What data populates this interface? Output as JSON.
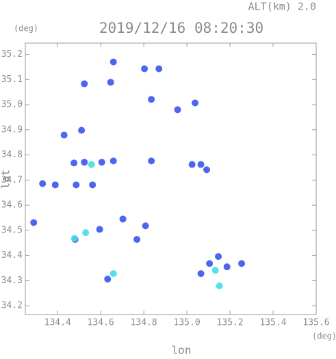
{
  "chart_data": {
    "type": "scatter",
    "title": "2019/12/16 08:20:30",
    "altitude_label": "ALT(km) 2.0",
    "y_unit": "(deg)",
    "x_unit": "(deg)",
    "xlabel": "lon",
    "ylabel": "lat",
    "xlim": [
      134.25,
      135.6
    ],
    "ylim": [
      34.165,
      35.245
    ],
    "xticks": [
      134.4,
      134.6,
      134.8,
      {
        "value": 135.0,
        "label": "135.0"
      },
      135.2,
      135.4,
      135.6
    ],
    "yticks": [
      34.2,
      34.3,
      34.4,
      34.5,
      34.6,
      34.7,
      34.8,
      34.9,
      {
        "value": 35.0,
        "label": "35.0"
      },
      35.1,
      35.2
    ],
    "series": [
      {
        "color": "#3a55ee",
        "x": [
          134.524,
          134.659,
          134.646,
          134.803,
          134.87,
          134.835,
          134.957,
          135.038,
          134.43,
          134.511,
          134.524,
          134.605,
          134.659,
          134.476,
          134.486,
          134.562,
          134.33,
          134.389,
          134.289,
          134.481,
          134.595,
          134.703,
          134.808,
          134.768,
          135.024,
          135.065,
          135.092,
          135.065,
          135.105,
          135.146,
          135.186,
          135.254,
          134.632,
          134.835
        ],
        "y": [
          35.083,
          35.17,
          35.089,
          35.143,
          35.143,
          35.021,
          34.98,
          35.007,
          34.879,
          34.898,
          34.771,
          34.771,
          34.776,
          34.768,
          34.681,
          34.681,
          34.686,
          34.681,
          34.531,
          34.464,
          34.504,
          34.545,
          34.518,
          34.464,
          34.762,
          34.762,
          34.741,
          34.328,
          34.368,
          34.396,
          34.355,
          34.368,
          34.306,
          34.776
        ]
      },
      {
        "color": "#44dde8",
        "x": [
          134.557,
          134.53,
          134.478,
          135.132,
          135.151,
          134.659
        ],
        "y": [
          34.762,
          34.491,
          34.468,
          34.341,
          34.279,
          34.328
        ]
      }
    ]
  }
}
